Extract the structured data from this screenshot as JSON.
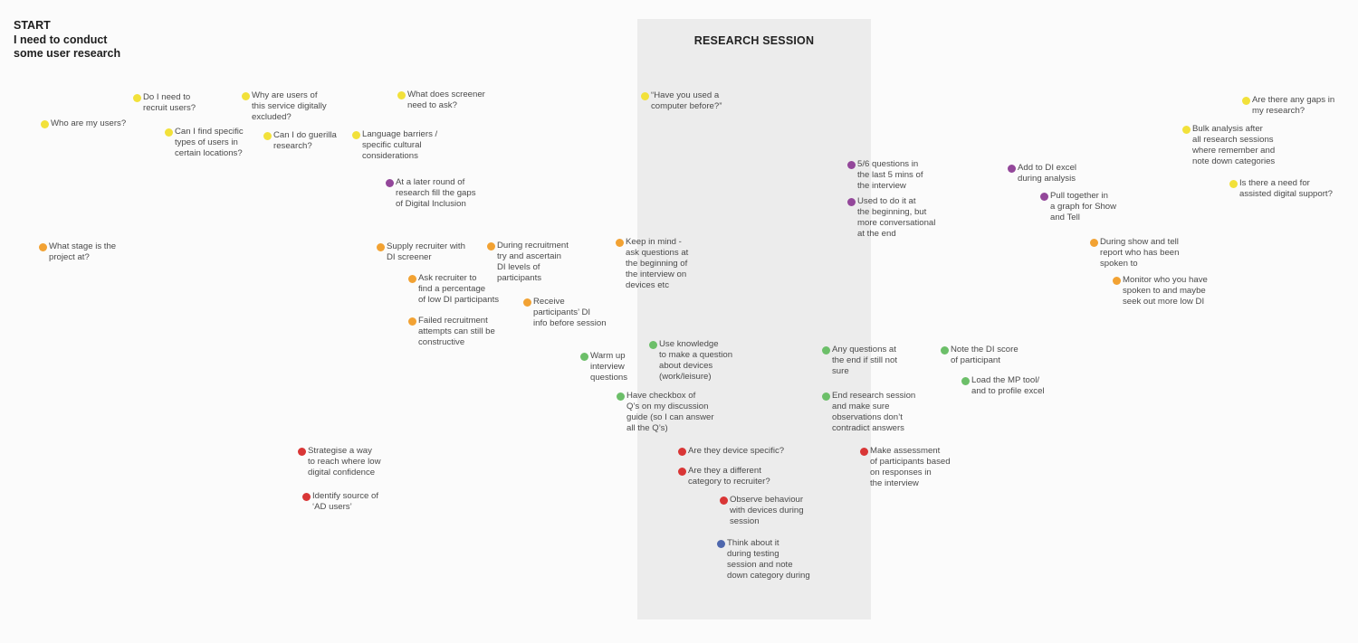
{
  "colors": {
    "yellow": "#f2e13a",
    "purple": "#93479a",
    "orange": "#f2a233",
    "green": "#6cbf69",
    "red": "#d93636",
    "blue": "#4e67ad"
  },
  "start": {
    "title": "START\nI need to conduct\nsome user research"
  },
  "session": {
    "title": "RESEARCH SESSION"
  },
  "notes": [
    {
      "id": "who-are-my-users",
      "color": "yellow",
      "text": "Who are my users?"
    },
    {
      "id": "do-i-need-to-recruit",
      "color": "yellow",
      "text": "Do I need to\nrecruit users?"
    },
    {
      "id": "specific-types-locations",
      "color": "yellow",
      "text": "Can I find specific\ntypes of users in\ncertain locations?"
    },
    {
      "id": "digitally-excluded",
      "color": "yellow",
      "text": "Why are users of\nthis service digitally\nexcluded?"
    },
    {
      "id": "guerilla-research",
      "color": "yellow",
      "text": "Can I do guerilla\nresearch?"
    },
    {
      "id": "language-barriers",
      "color": "yellow",
      "text": "Language barriers /\nspecific cultural\nconsiderations"
    },
    {
      "id": "screener-ask",
      "color": "yellow",
      "text": "What does screener\nneed to ask?"
    },
    {
      "id": "used-a-computer",
      "color": "yellow",
      "text": "“Have you used a\ncomputer before?”"
    },
    {
      "id": "gaps-in-research",
      "color": "yellow",
      "text": "Are there any gaps in\nmy research?"
    },
    {
      "id": "bulk-analysis",
      "color": "yellow",
      "text": "Bulk analysis after\nall research sessions\nwhere remember and\nnote down categories"
    },
    {
      "id": "assisted-digital-support",
      "color": "yellow",
      "text": "Is there a need for\nassisted digital support?"
    },
    {
      "id": "later-round-gaps",
      "color": "purple",
      "text": "At a later round of\nresearch fill the gaps\nof Digital Inclusion"
    },
    {
      "id": "five-six-questions",
      "color": "purple",
      "text": "5/6 questions in\nthe last 5 mins of\nthe interview"
    },
    {
      "id": "used-to-do-it",
      "color": "purple",
      "text": "Used to do it at\nthe beginning, but\nmore conversational\nat the end"
    },
    {
      "id": "add-to-di-excel",
      "color": "purple",
      "text": "Add to DI excel\nduring analysis"
    },
    {
      "id": "pull-together-graph",
      "color": "purple",
      "text": "Pull together in\na graph for Show\nand Tell"
    },
    {
      "id": "project-stage",
      "color": "orange",
      "text": "What stage is the\nproject at?"
    },
    {
      "id": "supply-recruiter",
      "color": "orange",
      "text": "Supply recruiter with\nDI screener"
    },
    {
      "id": "during-recruitment",
      "color": "orange",
      "text": "During recruitment\ntry and ascertain\nDI levels of\nparticipants"
    },
    {
      "id": "ask-recruiter",
      "color": "orange",
      "text": "Ask recruiter to\nfind a percentage\nof low DI participants"
    },
    {
      "id": "failed-recruitment",
      "color": "orange",
      "text": "Failed recruitment\nattempts can still be\nconstructive"
    },
    {
      "id": "receive-di-info",
      "color": "orange",
      "text": "Receive\nparticipants’ DI\ninfo before session"
    },
    {
      "id": "keep-in-mind",
      "color": "orange",
      "text": "Keep in mind -\nask questions at\nthe beginning of\nthe interview on\ndevices etc"
    },
    {
      "id": "show-and-tell-report",
      "color": "orange",
      "text": "During show and tell\nreport who has been\nspoken to"
    },
    {
      "id": "monitor-spoken-to",
      "color": "orange",
      "text": "Monitor who you have\nspoken to and maybe\nseek out more low DI"
    },
    {
      "id": "warm-up-questions",
      "color": "green",
      "text": "Warm up\ninterview\nquestions"
    },
    {
      "id": "use-knowledge",
      "color": "green",
      "text": "Use knowledge\nto make a question\nabout devices\n(work/leisure)"
    },
    {
      "id": "have-checkbox",
      "color": "green",
      "text": "Have checkbox of\nQ’s on my discussion\nguide (so I can answer\nall the Q’s)"
    },
    {
      "id": "any-questions-end",
      "color": "green",
      "text": "Any questions at\nthe end if still not\nsure"
    },
    {
      "id": "end-research-session",
      "color": "green",
      "text": "End research session\nand make sure\nobservations don’t\ncontradict answers"
    },
    {
      "id": "note-di-score",
      "color": "green",
      "text": "Note the DI score\nof participant"
    },
    {
      "id": "load-mp-tool",
      "color": "green",
      "text": "Load the MP tool/\nand to profile excel"
    },
    {
      "id": "strategise-reach",
      "color": "red",
      "text": "Strategise a way\nto reach where low\ndigital confidence"
    },
    {
      "id": "identify-source",
      "color": "red",
      "text": "Identify source of\n‘AD users’"
    },
    {
      "id": "device-specific",
      "color": "red",
      "text": "Are they device specific?"
    },
    {
      "id": "different-category",
      "color": "red",
      "text": "Are they a different\ncategory to recruiter?"
    },
    {
      "id": "observe-behaviour",
      "color": "red",
      "text": "Observe behaviour\nwith devices during\nsession"
    },
    {
      "id": "make-assessment",
      "color": "red",
      "text": "Make assessment\nof participants based\non responses in\nthe interview"
    },
    {
      "id": "think-about-it",
      "color": "blue",
      "text": "Think about it\nduring testing\nsession and note\ndown category during"
    }
  ]
}
